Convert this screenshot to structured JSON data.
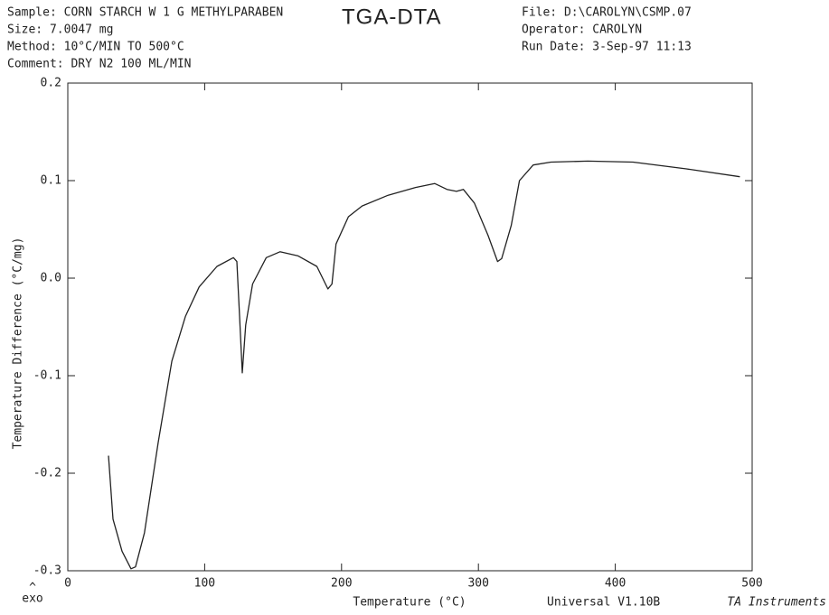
{
  "chart_data": {
    "type": "line",
    "title": "TGA-DTA",
    "info_left": [
      "Sample: CORN STARCH W 1 G METHYLPARABEN",
      "Size:   7.0047 mg",
      "Method: 10°C/MIN TO 500°C",
      "Comment: DRY N2 100 ML/MIN"
    ],
    "info_right": [
      "File: D:\\CAROLYN\\CSMP.07",
      "Operator: CAROLYN",
      "Run Date: 3-Sep-97  11:13"
    ],
    "xlabel": "Temperature (°C)",
    "ylabel": "Temperature Difference (°C/mg)",
    "exo_arrow": "^",
    "exo_label": "exo",
    "footer": "Universal V1.10B",
    "footer_brand": "TA Instruments",
    "color": "#222222",
    "xlim": [
      0,
      500
    ],
    "xticks": [
      0,
      100,
      200,
      300,
      400,
      500
    ],
    "ylim": [
      -0.3,
      0.2
    ],
    "yticks": [
      0.2,
      0.1,
      {
        "value": 0,
        "label": "0.0"
      },
      -0.1,
      -0.2,
      -0.3
    ],
    "x": [
      29.7,
      33,
      39.6,
      46.2,
      49.5,
      56,
      66,
      76,
      86,
      96,
      109,
      121,
      123.5,
      125.5,
      127.5,
      130,
      135,
      145,
      155,
      168,
      182,
      190,
      193,
      196,
      205,
      215,
      234,
      254,
      268,
      277,
      284,
      289,
      297,
      307,
      314,
      317,
      324,
      330,
      340,
      353,
      380,
      413,
      452,
      491
    ],
    "values": [
      -0.182,
      -0.247,
      -0.28,
      -0.298,
      -0.296,
      -0.261,
      -0.169,
      -0.085,
      -0.039,
      -0.009,
      0.012,
      0.021,
      0.017,
      -0.039,
      -0.097,
      -0.048,
      -0.006,
      0.021,
      0.027,
      0.023,
      0.012,
      -0.011,
      -0.006,
      0.035,
      0.063,
      0.074,
      0.085,
      0.093,
      0.097,
      0.091,
      0.089,
      0.091,
      0.077,
      0.044,
      0.017,
      0.02,
      0.054,
      0.1,
      0.116,
      0.119,
      0.12,
      0.119,
      0.112,
      0.104
    ]
  }
}
